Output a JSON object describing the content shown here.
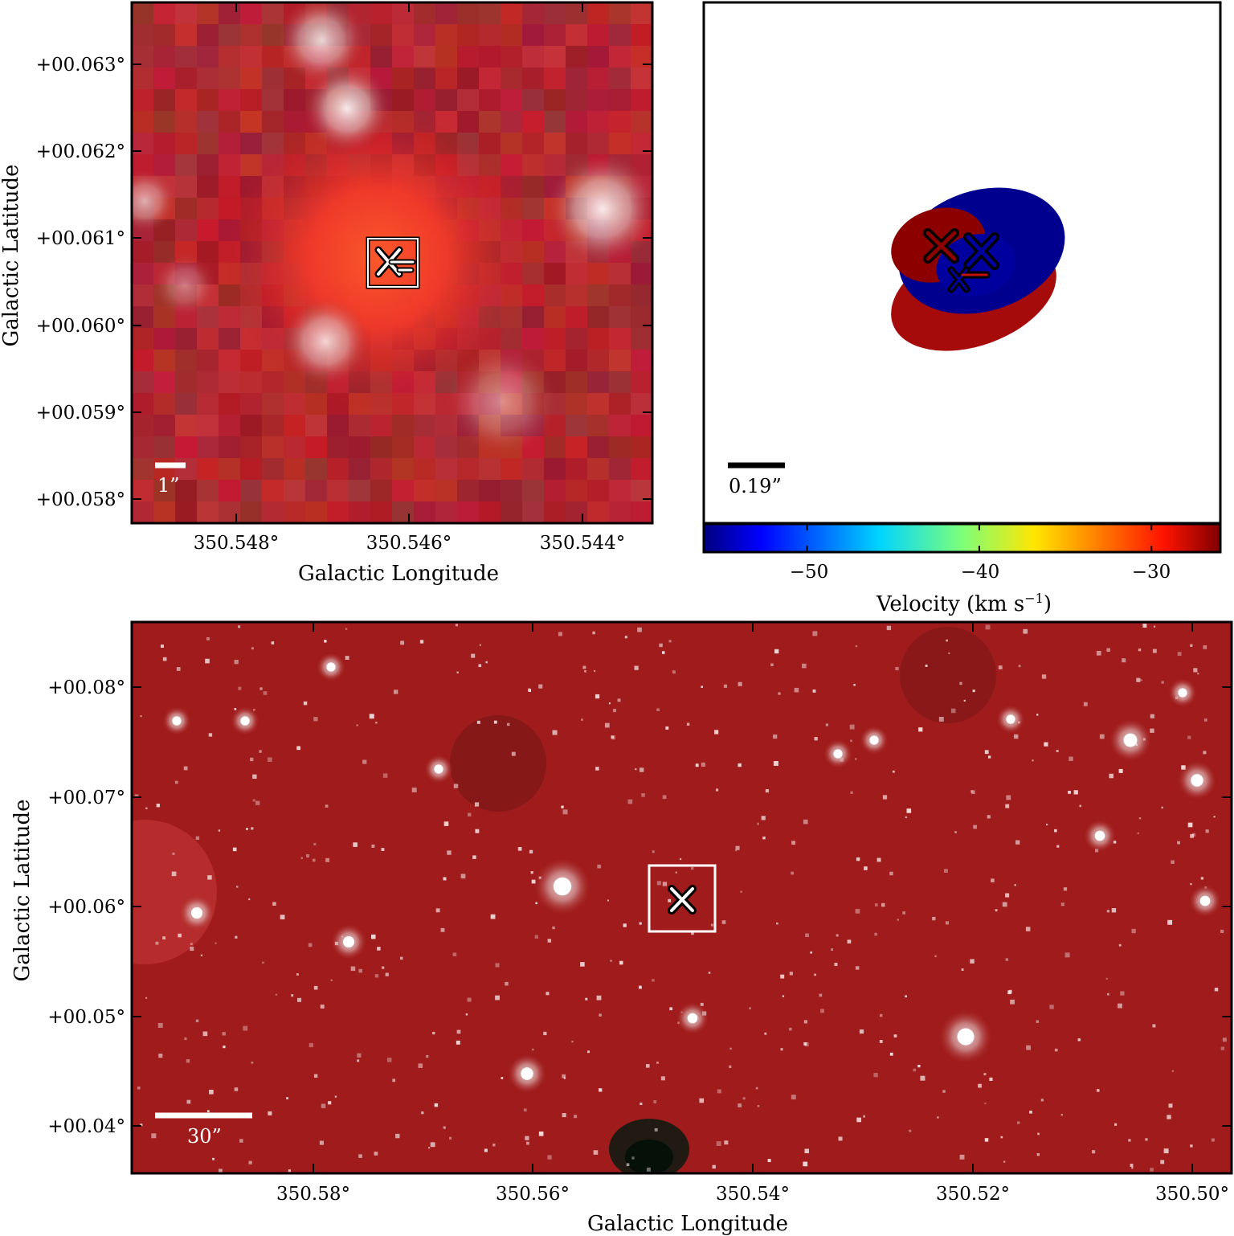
{
  "top_left": {
    "xlabel": "Galactic Longitude",
    "ylabel": "Galactic Latitude",
    "x_ticks": [
      "350.548°",
      "350.546°",
      "350.544°"
    ],
    "y_ticks": [
      "+00.063°",
      "+00.062°",
      "+00.061°",
      "+00.060°",
      "+00.059°",
      "+00.058°"
    ],
    "scale_bar": "1”"
  },
  "top_right": {
    "scale_bar": "0.19”",
    "colorbar_label": "Velocity (km s",
    "colorbar_label_sup": "−1",
    "colorbar_label_end": ")",
    "colorbar_ticks": [
      "−50",
      "−40",
      "−30"
    ],
    "colorbar_range": [
      -56,
      -26
    ],
    "colorbar_tick_values": [
      -50,
      -40,
      -30
    ],
    "ellipse_colors": [
      "#a50b0b",
      "#00008f",
      "#8c0000",
      "#00009e"
    ]
  },
  "bottom": {
    "xlabel": "Galactic Longitude",
    "ylabel": "Galactic Latitude",
    "x_ticks": [
      "350.58°",
      "350.56°",
      "350.54°",
      "350.52°",
      "350.50°"
    ],
    "y_ticks": [
      "+00.08°",
      "+00.07°",
      "+00.06°",
      "+00.05°",
      "+00.04°"
    ],
    "scale_bar": "30”"
  },
  "colors": {
    "background_red": "#a01c1c",
    "frame": "#000000",
    "marker_outline": "#000000",
    "marker_fill": "#ffffff"
  }
}
